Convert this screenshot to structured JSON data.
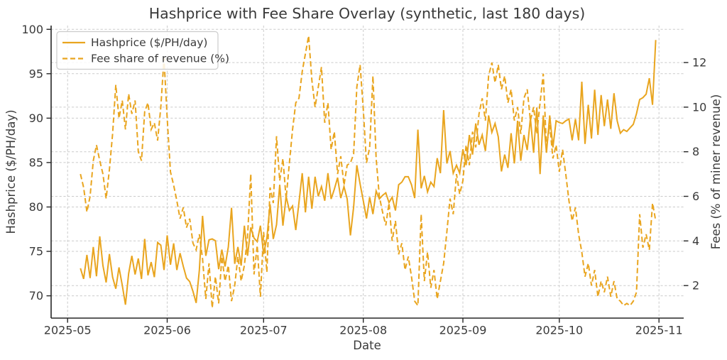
{
  "figure": {
    "background": "#ffffff",
    "text_color": "#3a3a3a",
    "accent_color": "#E9A51F",
    "grid_color": "#cbcbcb",
    "spine_color": "#262626"
  },
  "chart_data": {
    "type": "line",
    "title": "Hashprice with Fee Share Overlay (synthetic, last 180 days)",
    "xlabel": "Date",
    "ylabel_left": "Hashprice ($/PH/day)",
    "ylabel_right": "Fees (% of miner revenue)",
    "grid": true,
    "legend_position": "upper-left",
    "x_start_date": "2025-05-05",
    "x_end_date": "2025-10-31",
    "x_frequency": "daily",
    "x_start_day_offset": 4,
    "x_tick_labels": [
      "2025-05",
      "2025-06",
      "2025-07",
      "2025-08",
      "2025-09",
      "2025-10",
      "2025-11"
    ],
    "x_tick_day_offsets": [
      0,
      31,
      61,
      92,
      123,
      153,
      184
    ],
    "y_left_ticks": [
      70,
      75,
      80,
      85,
      90,
      95,
      100
    ],
    "y_left_range": [
      67.49,
      100.42
    ],
    "y_right_ticks": [
      2,
      4,
      6,
      8,
      10,
      12
    ],
    "y_right_range": [
      0.54,
      13.66
    ],
    "series": [
      {
        "name": "Hashprice ($/PH/day)",
        "axis": "left",
        "style": "solid",
        "color": "#E9A51F",
        "values": [
          73.1,
          71.9,
          74.6,
          72.0,
          75.5,
          72.2,
          76.7,
          73.4,
          71.5,
          74.7,
          72.1,
          70.8,
          73.2,
          71.2,
          69.0,
          72.5,
          74.5,
          72.4,
          74.2,
          71.9,
          76.4,
          72.3,
          73.8,
          72.1,
          76.0,
          75.7,
          72.9,
          76.8,
          73.5,
          75.9,
          72.9,
          74.8,
          73.3,
          72.0,
          71.6,
          70.5,
          69.2,
          72.9,
          79.0,
          74.5,
          76.3,
          76.4,
          76.2,
          73.0,
          75.2,
          73.3,
          75.5,
          79.9,
          73.6,
          75.5,
          73.4,
          77.9,
          74.5,
          77.7,
          76.5,
          76.1,
          77.9,
          74.7,
          76.5,
          80.3,
          76.4,
          78.0,
          82.5,
          77.9,
          81.2,
          79.6,
          80.1,
          77.4,
          80.5,
          83.8,
          79.4,
          83.4,
          79.8,
          83.4,
          81.2,
          82.3,
          80.7,
          83.8,
          80.9,
          82.0,
          83.3,
          81.0,
          82.3,
          80.9,
          76.8,
          80.0,
          84.7,
          82.6,
          80.7,
          78.7,
          81.1,
          79.2,
          81.8,
          80.9,
          81.3,
          81.6,
          80.5,
          81.1,
          79.6,
          82.5,
          82.8,
          83.4,
          83.4,
          82.5,
          81.0,
          88.7,
          82.1,
          83.5,
          81.7,
          82.8,
          82.3,
          85.5,
          83.8,
          90.9,
          84.9,
          86.3,
          83.8,
          84.7,
          83.8,
          86.5,
          84.7,
          88.1,
          85.9,
          89.4,
          87.0,
          88.1,
          86.3,
          90.3,
          88.4,
          89.4,
          87.9,
          84.0,
          85.9,
          84.4,
          88.3,
          84.9,
          89.7,
          85.2,
          88.1,
          86.4,
          90.0,
          86.1,
          91.2,
          83.7,
          90.3,
          86.1,
          90.3,
          86.7,
          89.7,
          89.5,
          89.4,
          89.7,
          89.9,
          87.5,
          89.9,
          87.5,
          94.1,
          87.1,
          91.5,
          87.7,
          93.2,
          88.1,
          92.6,
          89.1,
          92.1,
          88.8,
          92.8,
          89.7,
          88.3,
          88.7,
          88.5,
          88.9,
          89.3,
          90.5,
          92.1,
          92.3,
          92.7,
          94.5,
          91.5,
          98.8
        ]
      },
      {
        "name": "Fee share of revenue (%)",
        "axis": "right",
        "style": "dashed",
        "color": "#E9A51F",
        "values": [
          7.0,
          6.4,
          5.3,
          6.0,
          7.6,
          8.3,
          7.6,
          7.0,
          5.9,
          7.2,
          8.8,
          11.0,
          9.5,
          10.3,
          9.0,
          10.6,
          9.7,
          10.3,
          8.0,
          7.6,
          9.8,
          10.2,
          9.0,
          9.3,
          8.5,
          10.0,
          12.2,
          9.5,
          7.1,
          6.5,
          5.8,
          5.0,
          5.5,
          4.6,
          5.0,
          3.9,
          3.6,
          4.3,
          3.2,
          1.4,
          3.0,
          1.0,
          2.4,
          1.2,
          3.3,
          2.2,
          2.9,
          1.3,
          2.0,
          3.3,
          2.2,
          2.9,
          4.2,
          7.0,
          2.5,
          3.8,
          1.5,
          4.4,
          2.6,
          6.4,
          5.7,
          8.7,
          6.7,
          7.7,
          5.9,
          7.5,
          9.0,
          10.2,
          10.4,
          11.6,
          12.4,
          13.2,
          11.2,
          10.0,
          10.9,
          11.8,
          9.3,
          10.2,
          8.1,
          8.9,
          7.0,
          7.8,
          6.5,
          7.4,
          7.5,
          7.9,
          10.9,
          11.9,
          9.9,
          7.5,
          8.2,
          11.4,
          7.7,
          6.0,
          5.3,
          4.7,
          5.7,
          4.0,
          4.9,
          3.4,
          3.9,
          2.7,
          3.3,
          2.4,
          1.3,
          1.1,
          5.2,
          2.2,
          3.5,
          1.9,
          2.7,
          1.4,
          2.2,
          3.0,
          4.4,
          5.9,
          5.2,
          7.0,
          6.1,
          6.7,
          8.3,
          7.4,
          8.9,
          8.2,
          9.7,
          10.4,
          9.4,
          11.4,
          12.0,
          11.1,
          11.9,
          10.8,
          11.4,
          10.2,
          10.8,
          9.4,
          10.0,
          8.8,
          10.4,
          10.8,
          9.4,
          10.0,
          8.8,
          10.2,
          11.5,
          8.2,
          9.2,
          7.7,
          8.3,
          7.1,
          8.1,
          7.0,
          5.8,
          4.9,
          5.5,
          4.3,
          3.5,
          2.4,
          3.0,
          2.0,
          2.7,
          1.5,
          2.2,
          1.7,
          2.4,
          1.5,
          2.2,
          1.4,
          1.3,
          1.1,
          1.2,
          1.1,
          1.3,
          1.7,
          5.2,
          3.7,
          4.3,
          3.6,
          5.7,
          4.9
        ]
      }
    ]
  }
}
